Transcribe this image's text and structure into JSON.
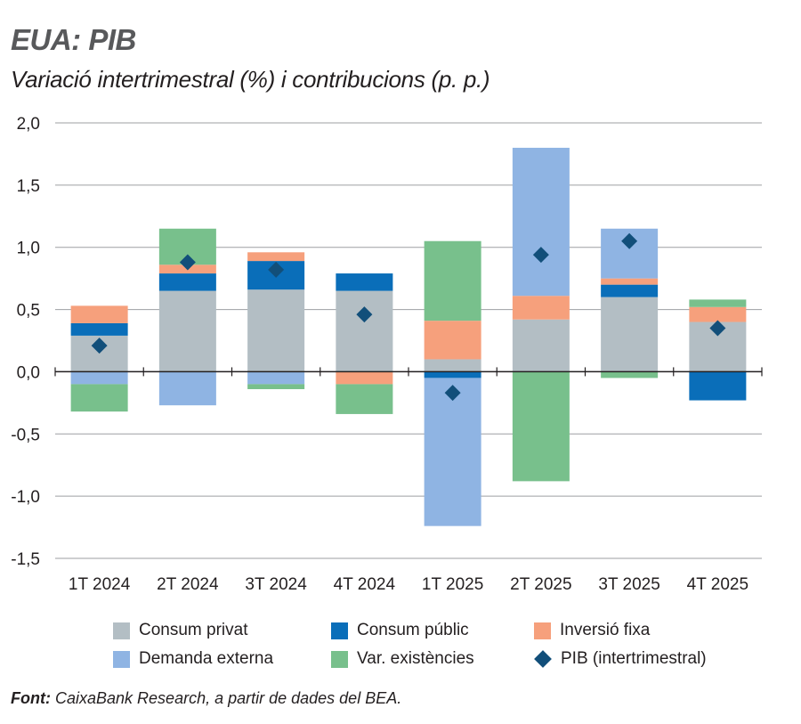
{
  "title": "EUA: PIB",
  "subtitle": "Variació intertrimestral (%) i contribucions (p. p.)",
  "source_label": "Font:",
  "source_text": "CaixaBank Research, a partir de dades del BEA.",
  "colors": {
    "consum_privat": "#b3bec4",
    "consum_public": "#0a6eb9",
    "inversio_fixa": "#f6a07c",
    "demanda_externa": "#8fb4e3",
    "var_existencies": "#78c08c",
    "pib": "#124f7a"
  },
  "chart_data": {
    "type": "bar",
    "stacked": true,
    "categories": [
      "1T 2024",
      "2T 2024",
      "3T 2024",
      "4T 2024",
      "1T 2025",
      "2T 2025",
      "3T 2025",
      "4T 2025"
    ],
    "ylim": [
      -1.5,
      2.0
    ],
    "yticks": [
      -1.5,
      -1.0,
      -0.5,
      0.0,
      0.5,
      1.0,
      1.5,
      2.0
    ],
    "ytick_labels": [
      "-1,5",
      "-1,0",
      "-0,5",
      "0,0",
      "0,5",
      "1,0",
      "1,5",
      "2,0"
    ],
    "grid": true,
    "legend_placement": "bottom",
    "series": [
      {
        "name": "Consum privat",
        "color_key": "consum_privat",
        "values": [
          0.29,
          0.65,
          0.66,
          0.65,
          0.1,
          0.42,
          0.6,
          0.4
        ]
      },
      {
        "name": "Consum públic",
        "color_key": "consum_public",
        "values": [
          0.1,
          0.14,
          0.23,
          0.14,
          -0.05,
          0.0,
          0.1,
          -0.23
        ]
      },
      {
        "name": "Inversió fixa",
        "color_key": "inversio_fixa",
        "values": [
          0.14,
          0.07,
          0.07,
          -0.1,
          0.31,
          0.19,
          0.05,
          0.12
        ]
      },
      {
        "name": "Demanda externa",
        "color_key": "demanda_externa",
        "values": [
          -0.1,
          -0.27,
          -0.1,
          0.0,
          -1.19,
          1.19,
          0.4,
          0.0
        ]
      },
      {
        "name": "Var. existències",
        "color_key": "var_existencies",
        "values": [
          -0.22,
          0.29,
          -0.04,
          -0.24,
          0.64,
          -0.88,
          -0.05,
          0.06
        ]
      }
    ],
    "line_series": {
      "name": "PIB (intertrimestral)",
      "color_key": "pib",
      "marker": "diamond",
      "values": [
        0.21,
        0.88,
        0.82,
        0.46,
        -0.17,
        0.94,
        1.05,
        0.35
      ]
    }
  }
}
